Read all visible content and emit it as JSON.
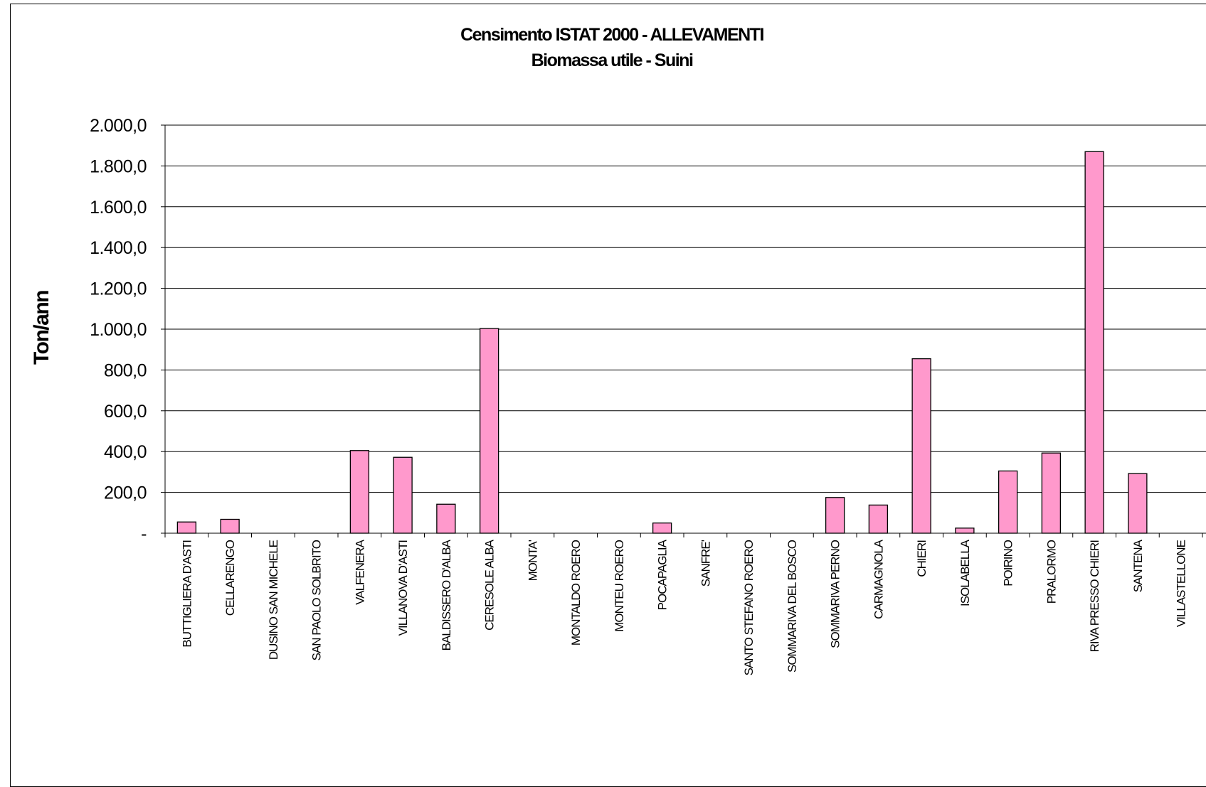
{
  "chart_data": {
    "type": "bar",
    "title": "Censimento ISTAT 2000 - ALLEVAMENTI",
    "subtitle": "Biomassa utile - Suini",
    "xlabel": "",
    "ylabel": "Ton/ann",
    "ylim": [
      0,
      2000
    ],
    "yticks": [
      {
        "value": 0,
        "label": "-"
      },
      {
        "value": 200,
        "label": "200,0"
      },
      {
        "value": 400,
        "label": "400,0"
      },
      {
        "value": 600,
        "label": "600,0"
      },
      {
        "value": 800,
        "label": "800,0"
      },
      {
        "value": 1000,
        "label": "1.000,0"
      },
      {
        "value": 1200,
        "label": "1.200,0"
      },
      {
        "value": 1400,
        "label": "1.400,0"
      },
      {
        "value": 1600,
        "label": "1.600,0"
      },
      {
        "value": 1800,
        "label": "1.800,0"
      },
      {
        "value": 2000,
        "label": "2.000,0"
      }
    ],
    "grid": true,
    "bar_color": "#ff99cc",
    "categories": [
      "BUTTIGLIERA D'ASTI",
      "CELLARENGO",
      "DUSINO SAN MICHELE",
      "SAN PAOLO SOLBRITO",
      "VALFENERA",
      "VILLANOVA D'ASTI",
      "BALDISSERO D'ALBA",
      "CERESOLE ALBA",
      "MONTA'",
      "MONTALDO ROERO",
      "MONTEU ROERO",
      "POCAPAGLIA",
      "SANFRE'",
      "SANTO STEFANO ROERO",
      "SOMMARIVA DEL BOSCO",
      "SOMMARIVA PERNO",
      "CARMAGNOLA",
      "CHIERI",
      "ISOLABELLA",
      "POIRINO",
      "PRALORMO",
      "RIVA PRESSO CHIERI",
      "SANTENA",
      "VILLASTELLONE"
    ],
    "values": [
      55,
      68,
      0,
      0,
      405,
      372,
      142,
      1003,
      0,
      0,
      0,
      50,
      0,
      0,
      0,
      175,
      138,
      855,
      25,
      305,
      393,
      1870,
      292,
      0
    ]
  }
}
